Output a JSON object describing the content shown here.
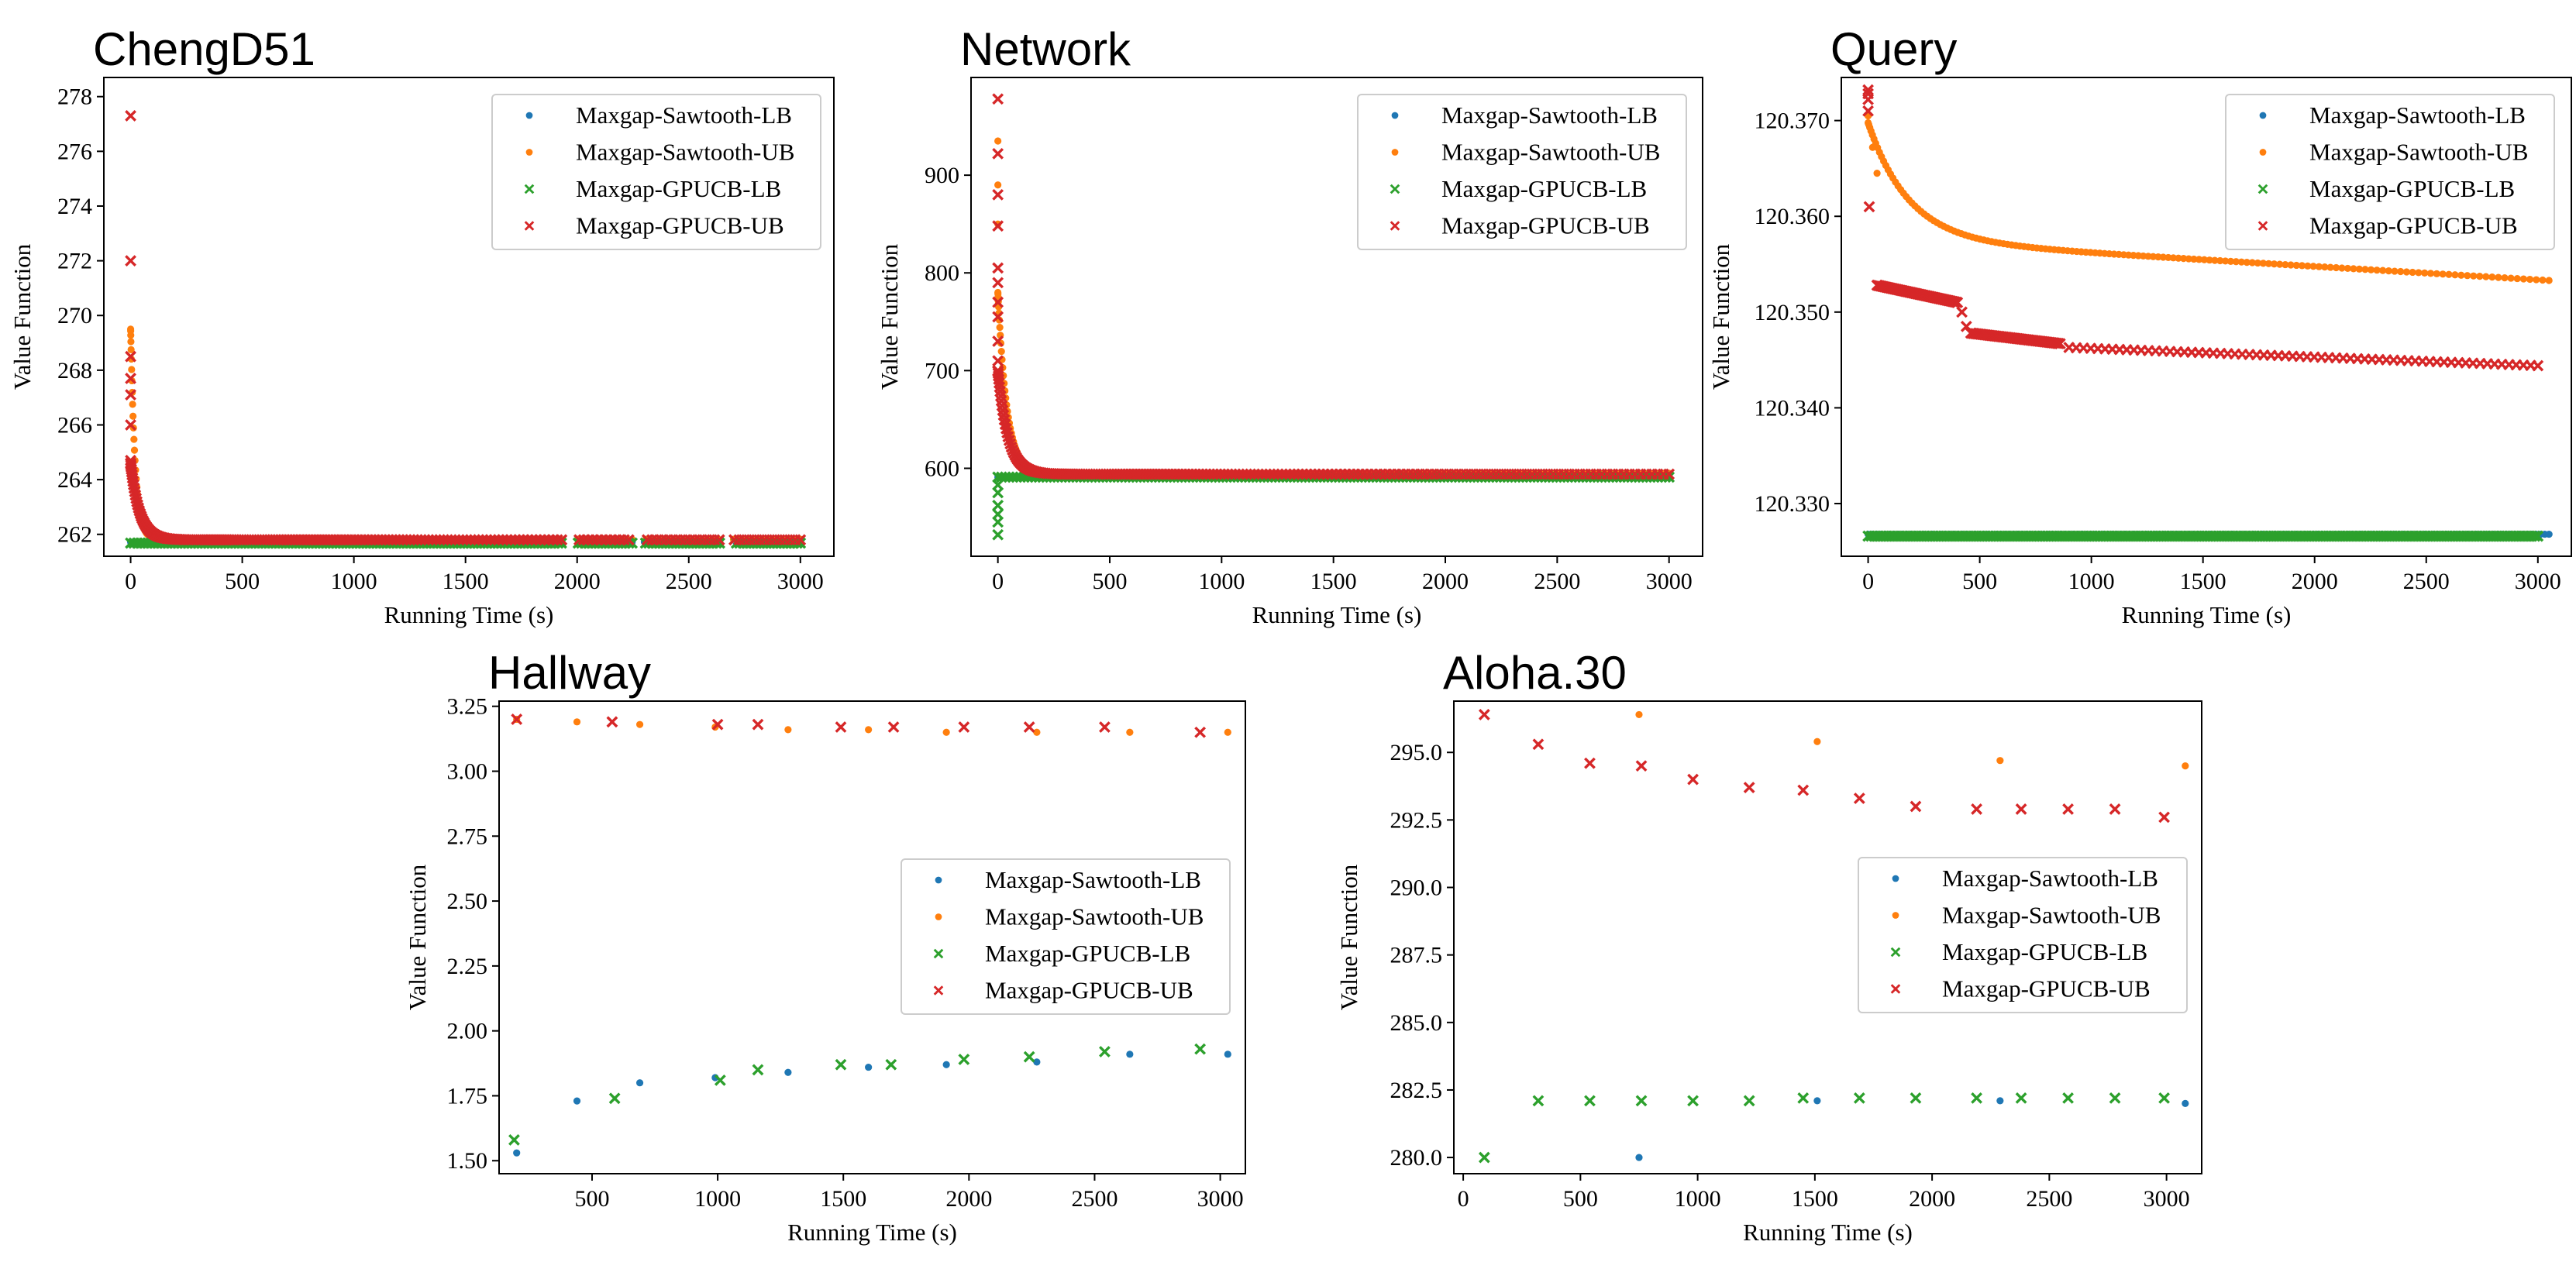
{
  "colors": {
    "sawtooth_lb": "#1f77b4",
    "sawtooth_ub": "#ff7f0e",
    "gpucb_lb": "#2ca02c",
    "gpucb_ub": "#d62728"
  },
  "chart_data": [
    {
      "type": "scatter",
      "title": "ChengD51",
      "xlabel": "Running Time (s)",
      "ylabel": "Value Function",
      "xlim": [
        -120,
        3150
      ],
      "ylim": [
        261.2,
        278.7
      ],
      "xticks": [
        "0",
        "500",
        "1000",
        "1500",
        "2000",
        "2500",
        "3000"
      ],
      "yticks": [
        "262",
        "264",
        "266",
        "268",
        "270",
        "272",
        "274",
        "276",
        "278"
      ],
      "legend_position": "upper right",
      "series": [
        {
          "name": "Maxgap-Sawtooth-LB",
          "marker": "dot",
          "color": "#1f77b4",
          "kind": "flat",
          "x_range": [
            0,
            3000
          ],
          "level": 261.72,
          "gaps": [
            [
              1940,
              2000
            ],
            [
              2250,
              2300
            ],
            [
              2640,
              2700
            ]
          ],
          "n": 220
        },
        {
          "name": "Maxgap-Sawtooth-UB",
          "marker": "dot",
          "color": "#ff7f0e",
          "kind": "decay",
          "x_range": [
            0,
            3000
          ],
          "start": 269.5,
          "end": 261.82,
          "tau": 20,
          "tail": 0.8,
          "gaps": [
            [
              1940,
              2000
            ],
            [
              2250,
              2300
            ],
            [
              2640,
              2700
            ]
          ],
          "n": 230
        },
        {
          "name": "Maxgap-GPUCB-LB",
          "marker": "x",
          "color": "#2ca02c",
          "kind": "flat",
          "x_range": [
            0,
            3000
          ],
          "level": 261.68,
          "gaps": [
            [
              1940,
              2000
            ],
            [
              2250,
              2300
            ],
            [
              2640,
              2700
            ]
          ],
          "n": 200
        },
        {
          "name": "Maxgap-GPUCB-UB",
          "marker": "x",
          "color": "#d62728",
          "kind": "decay",
          "x_range": [
            0,
            3000
          ],
          "start": 264.6,
          "end": 261.8,
          "tau": 40,
          "tail": 0.7,
          "gaps": [
            [
              1940,
              2000
            ],
            [
              2250,
              2300
            ],
            [
              2640,
              2700
            ]
          ],
          "n": 220,
          "extra": [
            [
              0,
              277.3
            ],
            [
              0,
              272.0
            ],
            [
              0,
              268.5
            ],
            [
              0,
              267.7
            ],
            [
              0,
              267.1
            ],
            [
              0,
              266.0
            ],
            [
              0,
              264.7
            ]
          ]
        }
      ]
    },
    {
      "type": "scatter",
      "title": "Network",
      "xlabel": "Running Time (s)",
      "ylabel": "Value Function",
      "xlim": [
        -120,
        3150
      ],
      "ylim": [
        510,
        1000
      ],
      "xticks": [
        "0",
        "500",
        "1000",
        "1500",
        "2000",
        "2500",
        "3000"
      ],
      "yticks": [
        "600",
        "700",
        "800",
        "900"
      ],
      "legend_position": "upper right",
      "series": [
        {
          "name": "Maxgap-Sawtooth-LB",
          "marker": "dot",
          "color": "#1f77b4",
          "kind": "flat",
          "x_range": [
            0,
            3000
          ],
          "level": 591,
          "gaps": [],
          "n": 200
        },
        {
          "name": "Maxgap-Sawtooth-UB",
          "marker": "dot",
          "color": "#ff7f0e",
          "kind": "decay",
          "x_range": [
            0,
            3000
          ],
          "start": 780,
          "end": 595,
          "tau": 40,
          "tail": 0.7,
          "gaps": [],
          "n": 220,
          "extra": [
            [
              0,
              935
            ],
            [
              0,
              890
            ],
            [
              0,
              850
            ]
          ]
        },
        {
          "name": "Maxgap-GPUCB-LB",
          "marker": "x",
          "color": "#2ca02c",
          "kind": "flat",
          "x_range": [
            0,
            3000
          ],
          "level": 591,
          "gaps": [],
          "n": 180,
          "extra": [
            [
              0,
              532
            ],
            [
              0,
              545
            ],
            [
              0,
              553
            ],
            [
              0,
              562
            ],
            [
              0,
              575
            ],
            [
              0,
              583
            ]
          ]
        },
        {
          "name": "Maxgap-GPUCB-UB",
          "marker": "x",
          "color": "#d62728",
          "kind": "decay",
          "x_range": [
            0,
            3000
          ],
          "start": 700,
          "end": 594,
          "tau": 45,
          "tail": 0.7,
          "gaps": [],
          "n": 200,
          "extra": [
            [
              0,
              978
            ],
            [
              0,
              922
            ],
            [
              0,
              880
            ],
            [
              0,
              848
            ],
            [
              0,
              805
            ],
            [
              0,
              790
            ],
            [
              0,
              770
            ],
            [
              0,
              755
            ],
            [
              0,
              730
            ],
            [
              0,
              710
            ]
          ]
        }
      ]
    },
    {
      "type": "scatter",
      "title": "Query",
      "xlabel": "Running Time (s)",
      "ylabel": "Value Function",
      "xlim": [
        -120,
        3150
      ],
      "ylim": [
        120.3245,
        120.3745
      ],
      "xticks": [
        "0",
        "500",
        "1000",
        "1500",
        "2000",
        "2500",
        "3000"
      ],
      "yticks": [
        "120.330",
        "120.340",
        "120.350",
        "120.360",
        "120.370"
      ],
      "legend_position": "upper right",
      "series": [
        {
          "name": "Maxgap-Sawtooth-LB",
          "marker": "dot",
          "color": "#1f77b4",
          "kind": "flat",
          "x_range": [
            0,
            3050
          ],
          "level": 120.3268,
          "gaps": [],
          "n": 160
        },
        {
          "name": "Maxgap-Sawtooth-UB",
          "marker": "dot",
          "color": "#ff7f0e",
          "kind": "decay",
          "x_range": [
            0,
            3050
          ],
          "start": 120.3655,
          "end": 120.3533,
          "tau": 180,
          "tail": 0.4,
          "slope": 1.4e-06,
          "gaps": [],
          "n": 150,
          "extra": [
            [
              0,
              120.3705
            ],
            [
              20,
              120.3672
            ],
            [
              40,
              120.3645
            ]
          ]
        },
        {
          "name": "Maxgap-GPUCB-LB",
          "marker": "x",
          "color": "#2ca02c",
          "kind": "flat",
          "x_range": [
            0,
            3000
          ],
          "level": 120.3266,
          "gaps": [],
          "n": 220
        },
        {
          "name": "Maxgap-GPUCB-UB",
          "marker": "x",
          "color": "#d62728",
          "kind": "points_line",
          "segments": [
            [
              40,
              120.3528,
              400,
              120.351
            ],
            [
              460,
              120.3478,
              860,
              120.3467
            ],
            [
              900,
              120.3463,
              3000,
              120.3444
            ]
          ],
          "n": 200,
          "extra": [
            [
              0,
              120.3732
            ],
            [
              0,
              120.3728
            ],
            [
              0,
              120.3722
            ],
            [
              0,
              120.371
            ],
            [
              5,
              120.361
            ],
            [
              420,
              120.35
            ],
            [
              440,
              120.3485
            ]
          ]
        }
      ]
    },
    {
      "type": "scatter",
      "title": "Hallway",
      "xlabel": "Running Time (s)",
      "ylabel": "Value Function",
      "xlim": [
        130,
        3100
      ],
      "ylim": [
        1.45,
        3.27
      ],
      "xticks": [
        "500",
        "1000",
        "1500",
        "2000",
        "2500",
        "3000"
      ],
      "yticks": [
        "1.50",
        "1.75",
        "2.00",
        "2.25",
        "2.50",
        "2.75",
        "3.00",
        "3.25"
      ],
      "legend_position": "center right",
      "series": [
        {
          "name": "Maxgap-Sawtooth-LB",
          "marker": "dot",
          "color": "#1f77b4",
          "kind": "points",
          "points": [
            [
              200,
              1.53
            ],
            [
              440,
              1.73
            ],
            [
              690,
              1.8
            ],
            [
              990,
              1.82
            ],
            [
              1280,
              1.84
            ],
            [
              1600,
              1.86
            ],
            [
              1910,
              1.87
            ],
            [
              2270,
              1.88
            ],
            [
              2640,
              1.91
            ],
            [
              3030,
              1.91
            ]
          ]
        },
        {
          "name": "Maxgap-Sawtooth-UB",
          "marker": "dot",
          "color": "#ff7f0e",
          "kind": "points",
          "points": [
            [
              200,
              3.2
            ],
            [
              440,
              3.19
            ],
            [
              690,
              3.18
            ],
            [
              990,
              3.17
            ],
            [
              1280,
              3.16
            ],
            [
              1600,
              3.16
            ],
            [
              1910,
              3.15
            ],
            [
              2270,
              3.15
            ],
            [
              2640,
              3.15
            ],
            [
              3030,
              3.15
            ]
          ]
        },
        {
          "name": "Maxgap-GPUCB-LB",
          "marker": "x",
          "color": "#2ca02c",
          "kind": "points",
          "points": [
            [
              190,
              1.58
            ],
            [
              590,
              1.74
            ],
            [
              1010,
              1.81
            ],
            [
              1160,
              1.85
            ],
            [
              1490,
              1.87
            ],
            [
              1690,
              1.87
            ],
            [
              1980,
              1.89
            ],
            [
              2240,
              1.9
            ],
            [
              2540,
              1.92
            ],
            [
              2920,
              1.93
            ]
          ]
        },
        {
          "name": "Maxgap-GPUCB-UB",
          "marker": "x",
          "color": "#d62728",
          "kind": "points",
          "points": [
            [
              200,
              3.2
            ],
            [
              580,
              3.19
            ],
            [
              1000,
              3.18
            ],
            [
              1160,
              3.18
            ],
            [
              1490,
              3.17
            ],
            [
              1700,
              3.17
            ],
            [
              1980,
              3.17
            ],
            [
              2240,
              3.17
            ],
            [
              2540,
              3.17
            ],
            [
              2920,
              3.15
            ]
          ]
        }
      ]
    },
    {
      "type": "scatter",
      "title": "Aloha.30",
      "xlabel": "Running Time (s)",
      "ylabel": "Value Function",
      "xlim": [
        -40,
        3150
      ],
      "ylim": [
        279.4,
        296.9
      ],
      "xticks": [
        "0",
        "500",
        "1000",
        "1500",
        "2000",
        "2500",
        "3000"
      ],
      "yticks": [
        "280.0",
        "282.5",
        "285.0",
        "287.5",
        "290.0",
        "292.5",
        "295.0"
      ],
      "legend_position": "center right",
      "series": [
        {
          "name": "Maxgap-Sawtooth-LB",
          "marker": "dot",
          "color": "#1f77b4",
          "kind": "points",
          "points": [
            [
              750,
              280.0
            ],
            [
              1510,
              282.1
            ],
            [
              2290,
              282.1
            ],
            [
              3080,
              282.0
            ]
          ]
        },
        {
          "name": "Maxgap-Sawtooth-UB",
          "marker": "dot",
          "color": "#ff7f0e",
          "kind": "points",
          "points": [
            [
              750,
              296.4
            ],
            [
              1510,
              295.4
            ],
            [
              2290,
              294.7
            ],
            [
              3080,
              294.5
            ]
          ]
        },
        {
          "name": "Maxgap-GPUCB-LB",
          "marker": "x",
          "color": "#2ca02c",
          "kind": "points",
          "points": [
            [
              90,
              280.0
            ],
            [
              320,
              282.1
            ],
            [
              540,
              282.1
            ],
            [
              760,
              282.1
            ],
            [
              980,
              282.1
            ],
            [
              1220,
              282.1
            ],
            [
              1450,
              282.2
            ],
            [
              1690,
              282.2
            ],
            [
              1930,
              282.2
            ],
            [
              2190,
              282.2
            ],
            [
              2380,
              282.2
            ],
            [
              2580,
              282.2
            ],
            [
              2780,
              282.2
            ],
            [
              2990,
              282.2
            ]
          ]
        },
        {
          "name": "Maxgap-GPUCB-UB",
          "marker": "x",
          "color": "#d62728",
          "kind": "points",
          "points": [
            [
              90,
              296.4
            ],
            [
              320,
              295.3
            ],
            [
              540,
              294.6
            ],
            [
              760,
              294.5
            ],
            [
              980,
              294.0
            ],
            [
              1220,
              293.7
            ],
            [
              1450,
              293.6
            ],
            [
              1690,
              293.3
            ],
            [
              1930,
              293.0
            ],
            [
              2190,
              292.9
            ],
            [
              2380,
              292.9
            ],
            [
              2580,
              292.9
            ],
            [
              2780,
              292.9
            ],
            [
              2990,
              292.6
            ]
          ]
        }
      ]
    }
  ]
}
